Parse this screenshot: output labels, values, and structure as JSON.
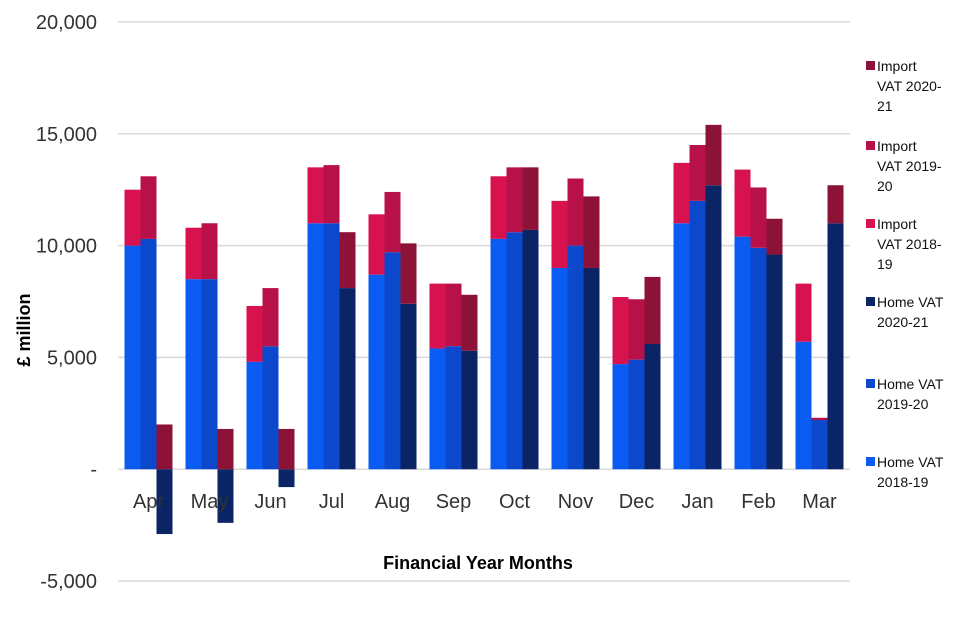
{
  "chart_data": {
    "type": "bar",
    "xlabel": "Financial Year Months",
    "ylabel": "£ million",
    "ylim": [
      -5000,
      20000
    ],
    "yticks": [
      -5000,
      0,
      5000,
      10000,
      15000,
      20000
    ],
    "ytick_labels": [
      "-5,000",
      "-",
      "5,000",
      "10,000",
      "15,000",
      "20,000"
    ],
    "grid": true,
    "legend_position": "right",
    "categories": [
      "Apr",
      "May",
      "Jun",
      "Jul",
      "Aug",
      "Sep",
      "Oct",
      "Nov",
      "Dec",
      "Jan",
      "Feb",
      "Mar"
    ],
    "years": [
      {
        "home": {
          "name": "Home VAT 2018-19",
          "color": "#0A5BF2",
          "values": [
            10000,
            8500,
            4800,
            11000,
            8700,
            5400,
            10300,
            9000,
            4700,
            11000,
            10400,
            5700
          ]
        },
        "import": {
          "name": "Import VAT 2018-19",
          "color": "#D8124E",
          "values": [
            2500,
            2300,
            2500,
            2500,
            2700,
            2900,
            2800,
            3000,
            3000,
            2700,
            3000,
            2600
          ]
        }
      },
      {
        "home": {
          "name": "Home VAT 2019-20",
          "color": "#0B48CC",
          "values": [
            10300,
            8500,
            5500,
            11000,
            9700,
            5500,
            10600,
            10000,
            4900,
            12000,
            9900,
            2200
          ]
        },
        "import": {
          "name": "Import VAT 2019-20",
          "color": "#B8114A",
          "values": [
            2800,
            2500,
            2600,
            2600,
            2700,
            2800,
            2900,
            3000,
            2700,
            2500,
            2700,
            100
          ]
        }
      },
      {
        "home": {
          "name": "Home VAT 2020-21",
          "color": "#0A2466",
          "values": [
            -2900,
            -2400,
            -800,
            8100,
            7400,
            5300,
            10700,
            9000,
            5600,
            12700,
            9600,
            11000
          ]
        },
        "import": {
          "name": "Import VAT 2020-21",
          "color": "#8C1238",
          "values": [
            2000,
            1800,
            1800,
            2500,
            2700,
            2500,
            2800,
            3200,
            3000,
            2700,
            1600,
            1700
          ]
        }
      }
    ],
    "legend": [
      {
        "label": "Import VAT 2020-21",
        "lines": [
          "Import",
          "VAT 2020-",
          "21"
        ],
        "color": "#8C1238"
      },
      {
        "label": "Import VAT 2019-20",
        "lines": [
          "Import",
          "VAT 2019-",
          "20"
        ],
        "color": "#B8114A"
      },
      {
        "label": "Import VAT 2018-19",
        "lines": [
          "Import",
          "VAT 2018-",
          "19"
        ],
        "color": "#D8124E"
      },
      {
        "label": "Home VAT 2020-21",
        "lines": [
          "Home VAT",
          "2020-21"
        ],
        "color": "#0A2466"
      },
      {
        "label": "Home VAT 2019-20",
        "lines": [
          "Home VAT",
          "2019-20"
        ],
        "color": "#0B48CC"
      },
      {
        "label": "Home VAT 2018-19",
        "lines": [
          "Home VAT",
          "2018-19"
        ],
        "color": "#0A5BF2"
      }
    ]
  }
}
